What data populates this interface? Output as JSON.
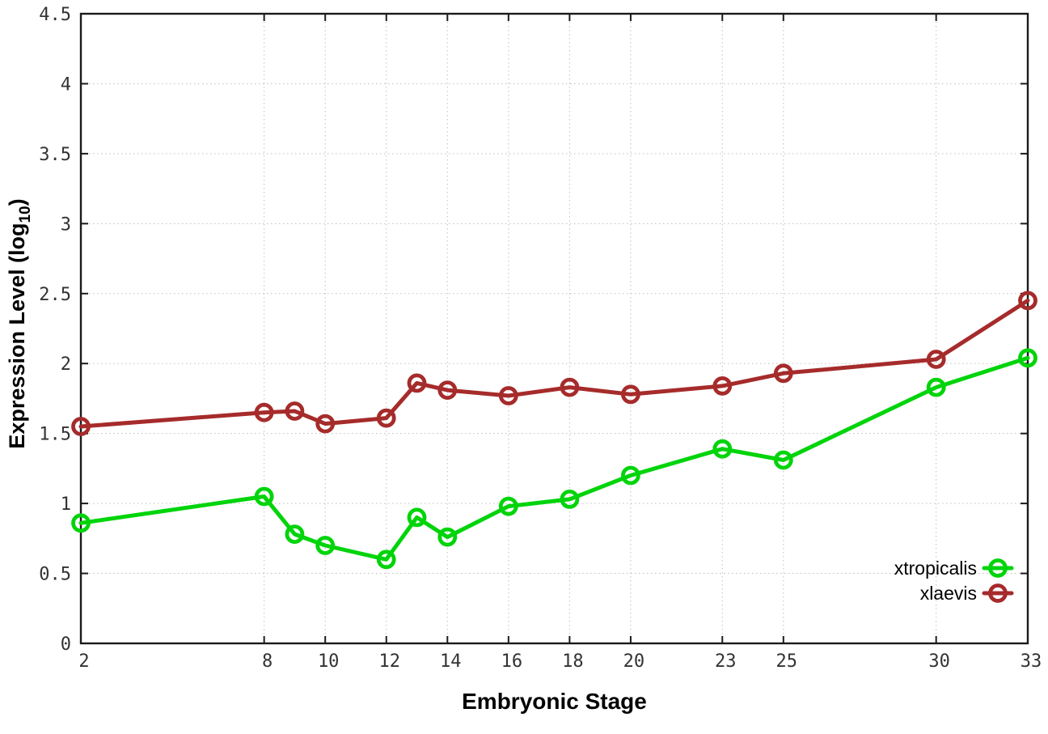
{
  "chart_data": {
    "type": "line",
    "title": "",
    "xlabel": "Embryonic Stage",
    "ylabel_prefix": "Expression Level (log",
    "ylabel_subscript": "10",
    "ylabel_suffix": ")",
    "x": [
      2,
      8,
      9,
      10,
      12,
      13,
      14,
      16,
      18,
      20,
      23,
      25,
      30,
      33
    ],
    "series": [
      {
        "name": "xtropicalis",
        "color": "#00d40a",
        "values": [
          0.86,
          1.05,
          0.78,
          0.7,
          0.6,
          0.9,
          0.76,
          0.98,
          1.03,
          1.2,
          1.39,
          1.31,
          1.83,
          2.04
        ]
      },
      {
        "name": "xlaevis",
        "color": "#a62b2b",
        "values": [
          1.55,
          1.65,
          1.66,
          1.57,
          1.61,
          1.86,
          1.81,
          1.77,
          1.83,
          1.78,
          1.84,
          1.93,
          2.03,
          2.45
        ]
      }
    ],
    "xticks": [
      2,
      8,
      10,
      12,
      14,
      16,
      18,
      20,
      23,
      25,
      30,
      33
    ],
    "yticks": [
      0,
      0.5,
      1,
      1.5,
      2,
      2.5,
      3,
      3.5,
      4,
      4.5
    ],
    "xlim": [
      2,
      33
    ],
    "ylim": [
      0,
      4.5
    ],
    "grid": true,
    "legend_position": "inside-bottom-right",
    "colors": {
      "grid": "#bfbfbf",
      "border": "#1b1b1b",
      "tick_text": "#333333",
      "title_text": "#000000",
      "background": "#ffffff"
    }
  }
}
